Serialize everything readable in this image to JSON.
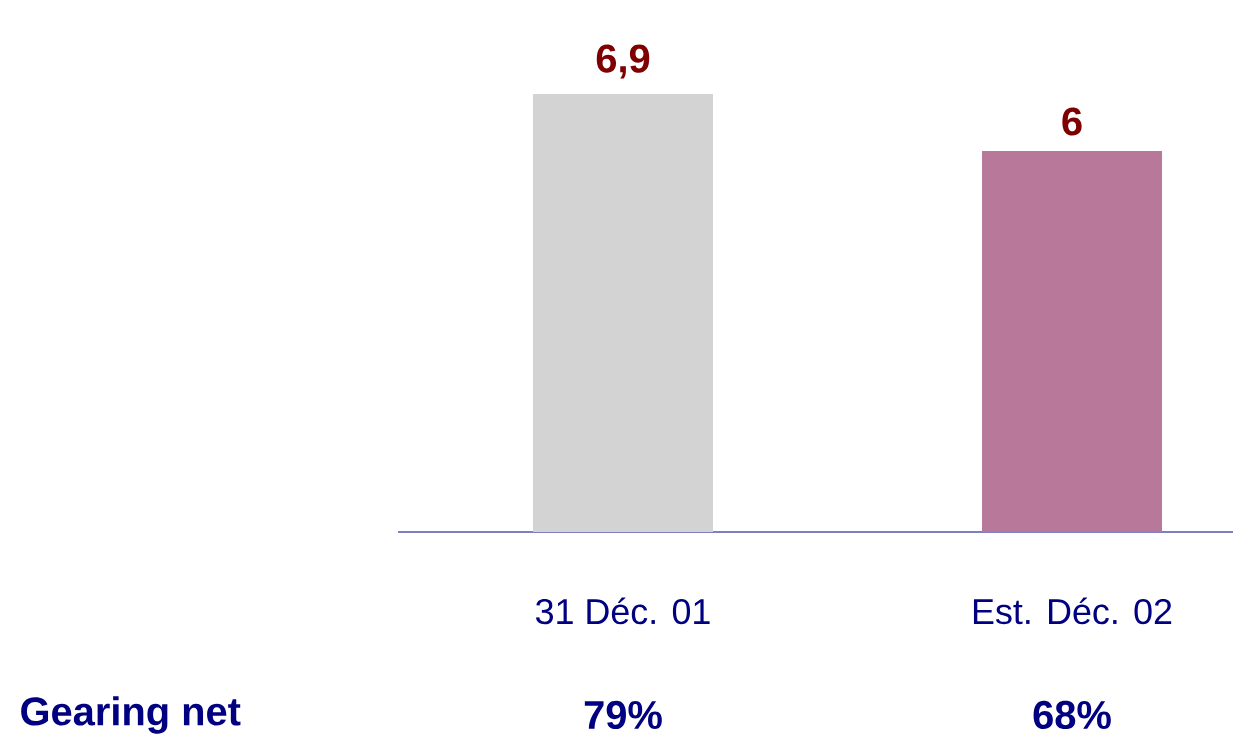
{
  "chart_data": {
    "type": "bar",
    "categories": [
      "31 Déc. 01",
      "Est. Déc. 02"
    ],
    "values": [
      6.9,
      6
    ],
    "value_labels": [
      "6,9",
      "6"
    ],
    "colors": [
      "#d3d3d3",
      "#b8789a"
    ],
    "annotations": [
      "Gearing net",
      "79%",
      "68%"
    ]
  }
}
